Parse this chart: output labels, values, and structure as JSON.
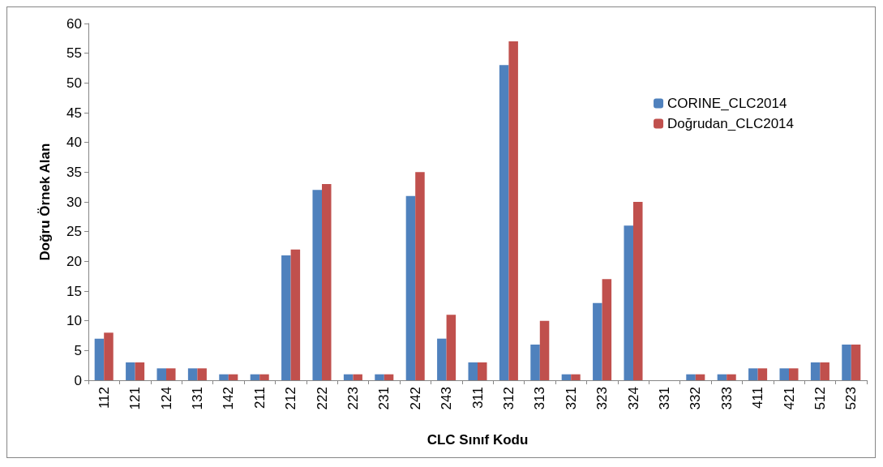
{
  "chart_data": {
    "type": "bar",
    "categories": [
      "112",
      "121",
      "124",
      "131",
      "142",
      "211",
      "212",
      "222",
      "223",
      "231",
      "242",
      "243",
      "311",
      "312",
      "313",
      "321",
      "323",
      "324",
      "331",
      "332",
      "333",
      "411",
      "421",
      "512",
      "523"
    ],
    "series": [
      {
        "name": "CORINE_CLC2014",
        "color": "#4f81bd",
        "values": [
          7,
          3,
          2,
          2,
          1,
          1,
          21,
          32,
          1,
          1,
          31,
          7,
          3,
          53,
          6,
          1,
          13,
          26,
          0,
          1,
          1,
          2,
          2,
          3,
          6
        ]
      },
      {
        "name": "Doğrudan_CLC2014",
        "color": "#c0504d",
        "values": [
          8,
          3,
          2,
          2,
          1,
          1,
          22,
          33,
          1,
          1,
          35,
          11,
          3,
          57,
          10,
          1,
          17,
          30,
          0,
          1,
          1,
          2,
          2,
          3,
          6
        ]
      }
    ],
    "xlabel": "CLC Sınıf Kodu",
    "ylabel": "Doğru Örnek Alan",
    "ylim": [
      0,
      60
    ],
    "yticks": [
      0,
      5,
      10,
      15,
      20,
      25,
      30,
      35,
      40,
      45,
      50,
      55,
      60
    ],
    "grid": false,
    "legend": "right"
  }
}
